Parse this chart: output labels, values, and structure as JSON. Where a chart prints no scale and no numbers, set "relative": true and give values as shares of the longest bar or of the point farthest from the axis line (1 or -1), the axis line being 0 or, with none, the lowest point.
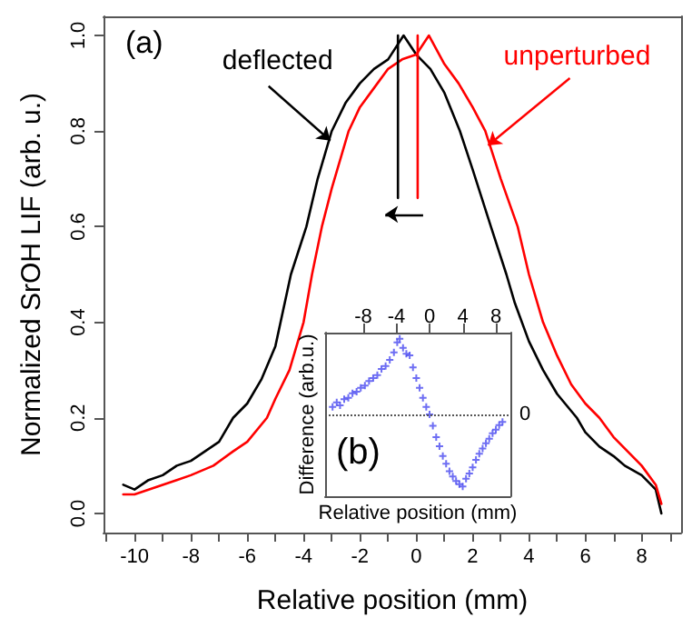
{
  "chart_data": [
    {
      "type": "line",
      "xlabel": "Relative position (mm)",
      "ylabel": "Normalized SrOH LIF (arb. u.)",
      "xlim": [
        -11.1,
        9.4
      ],
      "ylim": [
        -0.04,
        1.04
      ],
      "xticks": [
        {
          "value": -11,
          "label": null
        },
        -10,
        {
          "value": -9,
          "label": null
        },
        -8,
        {
          "value": -7,
          "label": null
        },
        -6,
        {
          "value": -5,
          "label": null
        },
        -4,
        {
          "value": -3,
          "label": null
        },
        -2,
        {
          "value": -1,
          "label": null
        },
        0,
        {
          "value": 1,
          "label": null
        },
        2,
        {
          "value": 3,
          "label": null
        },
        4,
        {
          "value": 5,
          "label": null
        },
        6,
        {
          "value": 7,
          "label": null
        },
        8,
        {
          "value": 9,
          "label": null
        }
      ],
      "yticks": [
        {
          "value": 0,
          "label": "0.0"
        },
        0.2,
        0.4,
        0.6,
        0.8,
        {
          "value": 1,
          "label": "1.0"
        }
      ],
      "marker": "none",
      "line_style": "solid",
      "series": [
        {
          "color": "#000000",
          "x": [
            -10.4,
            -10,
            -9.5,
            -9,
            -8.5,
            -8,
            -7.5,
            -7,
            -6.5,
            -6,
            -5.5,
            -5,
            -4.45,
            -3.9,
            -3.5,
            -3,
            -2.5,
            -2,
            -1.5,
            -1,
            -0.45,
            0,
            0.5,
            1,
            1.55,
            2,
            2.65,
            3.2,
            3.5,
            4,
            4.5,
            5,
            5.7,
            6,
            6.5,
            7,
            7.4,
            8,
            8.5,
            8.7
          ],
          "values": [
            0.06,
            0.05,
            0.07,
            0.08,
            0.1,
            0.11,
            0.13,
            0.15,
            0.2,
            0.23,
            0.28,
            0.35,
            0.5,
            0.6,
            0.7,
            0.8,
            0.86,
            0.9,
            0.93,
            0.95,
            1.0,
            0.96,
            0.93,
            0.88,
            0.8,
            0.72,
            0.6,
            0.5,
            0.44,
            0.36,
            0.3,
            0.25,
            0.2,
            0.17,
            0.14,
            0.12,
            0.1,
            0.08,
            0.05,
            0.0
          ]
        },
        {
          "color": "#ff0000",
          "x": [
            -10.4,
            -10,
            -9.5,
            -9,
            -8.5,
            -8,
            -7.2,
            -6.5,
            -6,
            -5.3,
            -5,
            -4.5,
            -4,
            -3.7,
            -3.35,
            -3,
            -2.4,
            -2,
            -1.5,
            -1,
            -0.5,
            0,
            0.45,
            1,
            1.5,
            2,
            2.45,
            3,
            3.6,
            4,
            4.5,
            5,
            5.5,
            6,
            6.5,
            7,
            7.5,
            8,
            8.5,
            8.7
          ],
          "values": [
            0.04,
            0.04,
            0.05,
            0.06,
            0.07,
            0.08,
            0.1,
            0.13,
            0.15,
            0.2,
            0.24,
            0.3,
            0.4,
            0.5,
            0.6,
            0.68,
            0.8,
            0.85,
            0.89,
            0.93,
            0.95,
            0.96,
            1.0,
            0.94,
            0.9,
            0.85,
            0.8,
            0.7,
            0.6,
            0.5,
            0.4,
            0.33,
            0.27,
            0.23,
            0.2,
            0.16,
            0.13,
            0.1,
            0.06,
            0.02
          ]
        },
        {
          "type": "line",
          "color": "#000000",
          "x": [
            -0.65,
            -0.65
          ],
          "values": [
            0.66,
            1.0
          ]
        },
        {
          "type": "line",
          "color": "#ff0000",
          "x": [
            0.05,
            0.05
          ],
          "values": [
            0.66,
            1.0
          ]
        }
      ],
      "annotations": [
        "(a)",
        {
          "text": "deflected",
          "x": -3.05,
          "y": 0.78
        },
        {
          "text": "unperturbed",
          "x": 2.55,
          "y": 0.77
        }
      ]
    },
    {
      "type": "scatter",
      "relative": true,
      "xlabel": "Relative position (mm)",
      "ylabel": "Difference (arb.u.)",
      "xlim": [
        -12.6,
        9.75
      ],
      "xticks": [
        -8,
        -4,
        0,
        4,
        8
      ],
      "tick_labels": "x",
      "marker": "cross",
      "x": [
        -11.7,
        -11.2,
        -10.8,
        -10.3,
        -9.8,
        -9.3,
        -8.8,
        -8.3,
        -7.8,
        -7.3,
        -6.8,
        -6.3,
        -5.8,
        -5.3,
        -4.8,
        -4.3,
        -3.9,
        -3.6,
        -3.2,
        -2.8,
        -2.4,
        -2.0,
        -1.6,
        -1.2,
        -0.8,
        -0.4,
        0,
        0.4,
        0.8,
        1.2,
        1.6,
        2.0,
        2.4,
        2.8,
        3.2,
        3.6,
        4.0,
        4.4,
        4.8,
        5.2,
        5.6,
        6.0,
        6.4,
        6.8,
        7.2,
        7.6,
        8.0,
        8.4,
        8.8
      ],
      "series": [
        {
          "color": "#4a4af0",
          "values": [
            0.1,
            0.16,
            0.12,
            0.2,
            0.22,
            0.28,
            0.3,
            0.35,
            0.38,
            0.44,
            0.48,
            0.52,
            0.6,
            0.64,
            0.72,
            0.82,
            0.95,
            1.0,
            0.88,
            0.8,
            0.78,
            0.62,
            0.48,
            0.35,
            0.22,
            0.1,
            0.0,
            -0.15,
            -0.3,
            -0.42,
            -0.55,
            -0.65,
            -0.75,
            -0.82,
            -0.88,
            -0.92,
            -0.95,
            -0.85,
            -0.78,
            -0.7,
            -0.6,
            -0.52,
            -0.45,
            -0.38,
            -0.32,
            -0.25,
            -0.2,
            -0.14,
            -0.1
          ]
        }
      ],
      "ref_lines": [
        {
          "axis": "y",
          "value": 0,
          "label": "0",
          "line_style": "dotted",
          "color": "#555555"
        }
      ],
      "annotations": [
        "(b)"
      ]
    }
  ]
}
